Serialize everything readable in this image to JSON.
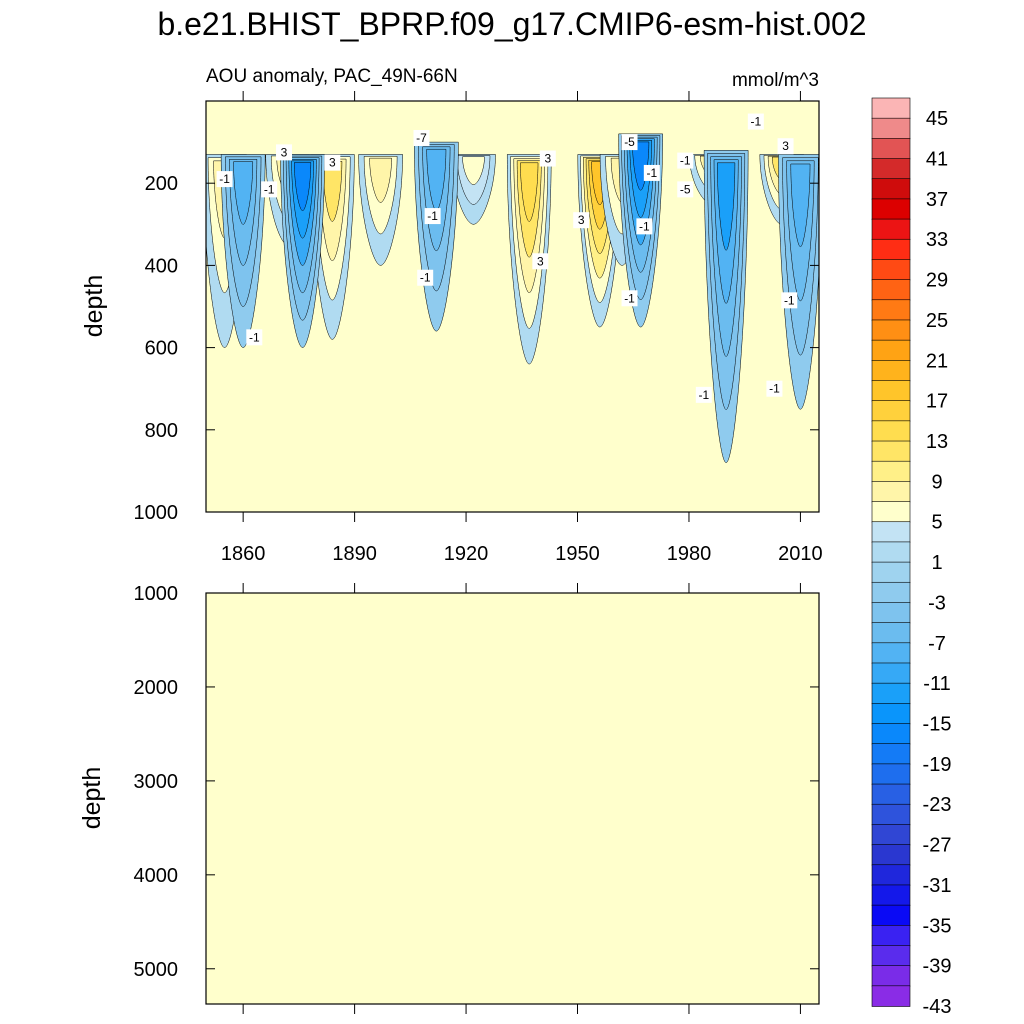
{
  "title": "b.e21.BHIST_BPRP.f09_g17.CMIP6-esm-hist.002",
  "colors": {
    "background_fill": "#ffffcc",
    "line": "#000000"
  },
  "chart_data": [
    {
      "type": "heatmap",
      "panel": "upper",
      "left_string": "AOU anomaly, PAC_49N-66N",
      "right_string": "mmol/m^3",
      "ylabel": "depth",
      "xlabel": "",
      "xlim": [
        1850,
        2015
      ],
      "ylim": [
        0,
        1000
      ],
      "y_reversed": true,
      "x_ticks": [
        1860,
        1890,
        1920,
        1950,
        1980,
        2010
      ],
      "y_ticks": [
        200,
        400,
        600,
        800,
        1000
      ],
      "contour_labels": [
        {
          "text": "-1",
          "x": 1855,
          "y": 190
        },
        {
          "text": "3",
          "x": 1871,
          "y": 125
        },
        {
          "text": "3",
          "x": 1884,
          "y": 150
        },
        {
          "text": "-1",
          "x": 1867,
          "y": 215
        },
        {
          "text": "-1",
          "x": 1863,
          "y": 575
        },
        {
          "text": "-7",
          "x": 1908,
          "y": 90
        },
        {
          "text": "-1",
          "x": 1911,
          "y": 280
        },
        {
          "text": "-1",
          "x": 1909,
          "y": 430
        },
        {
          "text": "3",
          "x": 1942,
          "y": 140
        },
        {
          "text": "3",
          "x": 1951,
          "y": 290
        },
        {
          "text": "3",
          "x": 1940,
          "y": 390
        },
        {
          "text": "-5",
          "x": 1964,
          "y": 100
        },
        {
          "text": "-1",
          "x": 1970,
          "y": 175
        },
        {
          "text": "-1",
          "x": 1968,
          "y": 305
        },
        {
          "text": "-1",
          "x": 1979,
          "y": 145
        },
        {
          "text": "-5",
          "x": 1979,
          "y": 215
        },
        {
          "text": "-1",
          "x": 1964,
          "y": 480
        },
        {
          "text": "-1",
          "x": 1998,
          "y": 50
        },
        {
          "text": "3",
          "x": 2006,
          "y": 110
        },
        {
          "text": "-1",
          "x": 2007,
          "y": 485
        },
        {
          "text": "-1",
          "x": 1984,
          "y": 715
        },
        {
          "text": "-1",
          "x": 2003,
          "y": 700
        }
      ],
      "features": [
        {
          "sign": "positive",
          "x": 1855,
          "ymin": 130,
          "ymax": 600,
          "peak": 9
        },
        {
          "sign": "positive",
          "x": 1872,
          "ymin": 130,
          "ymax": 350,
          "peak": 9
        },
        {
          "sign": "positive",
          "x": 1884,
          "ymin": 130,
          "ymax": 580,
          "peak": 13
        },
        {
          "sign": "positive",
          "x": 1897,
          "ymin": 130,
          "ymax": 400,
          "peak": 9
        },
        {
          "sign": "positive",
          "x": 1922,
          "ymin": 130,
          "ymax": 300,
          "peak": 7
        },
        {
          "sign": "positive",
          "x": 1937,
          "ymin": 130,
          "ymax": 640,
          "peak": 17
        },
        {
          "sign": "positive",
          "x": 1956,
          "ymin": 130,
          "ymax": 550,
          "peak": 21
        },
        {
          "sign": "positive",
          "x": 1962,
          "ymin": 130,
          "ymax": 400,
          "peak": 9
        },
        {
          "sign": "positive",
          "x": 1986,
          "ymin": 130,
          "ymax": 250,
          "peak": 9
        },
        {
          "sign": "positive",
          "x": 2005,
          "ymin": 130,
          "ymax": 300,
          "peak": 13
        },
        {
          "sign": "negative",
          "x": 1860,
          "ymin": 130,
          "ymax": 600,
          "peak": -11
        },
        {
          "sign": "negative",
          "x": 1876,
          "ymin": 130,
          "ymax": 600,
          "peak": -19
        },
        {
          "sign": "negative",
          "x": 1912,
          "ymin": 100,
          "ymax": 560,
          "peak": -11
        },
        {
          "sign": "negative",
          "x": 1967,
          "ymin": 80,
          "ymax": 550,
          "peak": -19
        },
        {
          "sign": "negative",
          "x": 1990,
          "ymin": 120,
          "ymax": 880,
          "peak": -15
        },
        {
          "sign": "negative",
          "x": 2010,
          "ymin": 130,
          "ymax": 750,
          "peak": -11
        }
      ]
    },
    {
      "type": "heatmap",
      "panel": "lower",
      "ylabel": "depth",
      "xlabel": "",
      "xlim": [
        1850,
        2015
      ],
      "ylim": [
        1000,
        5375
      ],
      "y_reversed": true,
      "y_ticks": [
        1000,
        2000,
        3000,
        4000,
        5000
      ],
      "x_ticks": [
        1860,
        1890,
        1920,
        1950,
        1980,
        2010
      ],
      "uniform_value_class": "1"
    }
  ],
  "colorbar": {
    "labels": [
      "45",
      "41",
      "37",
      "33",
      "29",
      "25",
      "21",
      "17",
      "13",
      "9",
      "5",
      "1",
      "-3",
      "-7",
      "-11",
      "-15",
      "-19",
      "-23",
      "-27",
      "-31",
      "-35",
      "-39",
      "-43"
    ],
    "colors": [
      "#fbb5b5",
      "#ef8a8a",
      "#e25454",
      "#d42a2a",
      "#cf0c0c",
      "#dc0000",
      "#ec1414",
      "#ff2d14",
      "#ff4a14",
      "#ff6314",
      "#ff7a14",
      "#ff8f14",
      "#ffa314",
      "#ffb31c",
      "#ffc52a",
      "#ffd13c",
      "#ffdd4f",
      "#ffe566",
      "#fff088",
      "#fff5a9",
      "#ffffcc",
      "#c3e3f4",
      "#b0dbf1",
      "#9fd3ef",
      "#8fcbee",
      "#7ec3ee",
      "#6bbcef",
      "#52b3f3",
      "#36a9f6",
      "#1aa0f9",
      "#0a95fb",
      "#0a88fb",
      "#147bf6",
      "#1e6eee",
      "#2860e4",
      "#2e53dc",
      "#3046d4",
      "#2a37d0",
      "#1f27dc",
      "#1418ea",
      "#0a0af5",
      "#3a22f2",
      "#5a2ced",
      "#7a2ce8",
      "#8a2ce6"
    ]
  }
}
